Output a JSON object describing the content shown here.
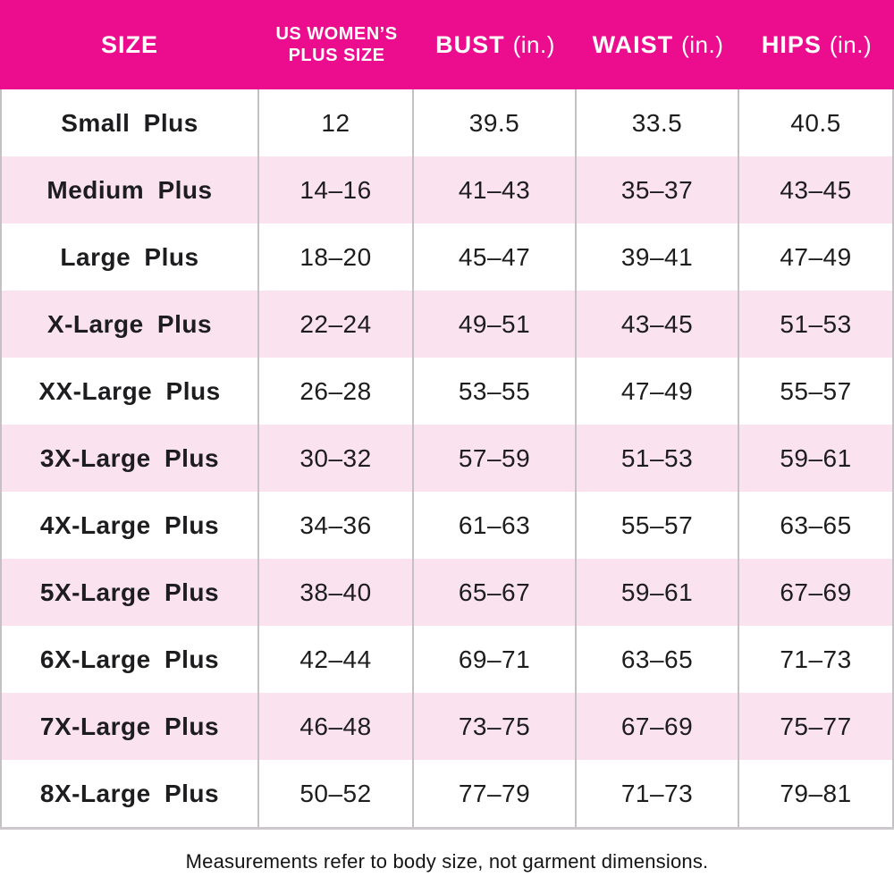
{
  "colors": {
    "header_bg": "#EC0C8E",
    "header_text": "#FFFFFF",
    "row_bg": "#FFFFFF",
    "row_alt_bg": "#FAE2EF",
    "grid_line": "#C4C0C4",
    "text": "#1D1D1F"
  },
  "chart_data": {
    "type": "table",
    "header": {
      "size_label": "SIZE",
      "plus_size_line1": "US WOMEN’S",
      "plus_size_line2": "PLUS SIZE",
      "bust_label": "BUST",
      "bust_unit": "(in.)",
      "waist_label": "WAIST",
      "waist_unit": "(in.)",
      "hips_label": "HIPS",
      "hips_unit": "(in.)"
    },
    "columns": [
      "SIZE",
      "US WOMEN’S PLUS SIZE",
      "BUST (in.)",
      "WAIST (in.)",
      "HIPS (in.)"
    ],
    "rows": [
      {
        "size": "Small Plus",
        "us_plus_size": "12",
        "bust": "39.5",
        "waist": "33.5",
        "hips": "40.5"
      },
      {
        "size": "Medium Plus",
        "us_plus_size": "14–16",
        "bust": "41–43",
        "waist": "35–37",
        "hips": "43–45"
      },
      {
        "size": "Large Plus",
        "us_plus_size": "18–20",
        "bust": "45–47",
        "waist": "39–41",
        "hips": "47–49"
      },
      {
        "size": "X-Large Plus",
        "us_plus_size": "22–24",
        "bust": "49–51",
        "waist": "43–45",
        "hips": "51–53"
      },
      {
        "size": "XX-Large Plus",
        "us_plus_size": "26–28",
        "bust": "53–55",
        "waist": "47–49",
        "hips": "55–57"
      },
      {
        "size": "3X-Large Plus",
        "us_plus_size": "30–32",
        "bust": "57–59",
        "waist": "51–53",
        "hips": "59–61"
      },
      {
        "size": "4X-Large Plus",
        "us_plus_size": "34–36",
        "bust": "61–63",
        "waist": "55–57",
        "hips": "63–65"
      },
      {
        "size": "5X-Large Plus",
        "us_plus_size": "38–40",
        "bust": "65–67",
        "waist": "59–61",
        "hips": "67–69"
      },
      {
        "size": "6X-Large Plus",
        "us_plus_size": "42–44",
        "bust": "69–71",
        "waist": "63–65",
        "hips": "71–73"
      },
      {
        "size": "7X-Large Plus",
        "us_plus_size": "46–48",
        "bust": "73–75",
        "waist": "67–69",
        "hips": "75–77"
      },
      {
        "size": "8X-Large Plus",
        "us_plus_size": "50–52",
        "bust": "77–79",
        "waist": "71–73",
        "hips": "79–81"
      }
    ]
  },
  "footnote": "Measurements refer to body size, not garment dimensions."
}
